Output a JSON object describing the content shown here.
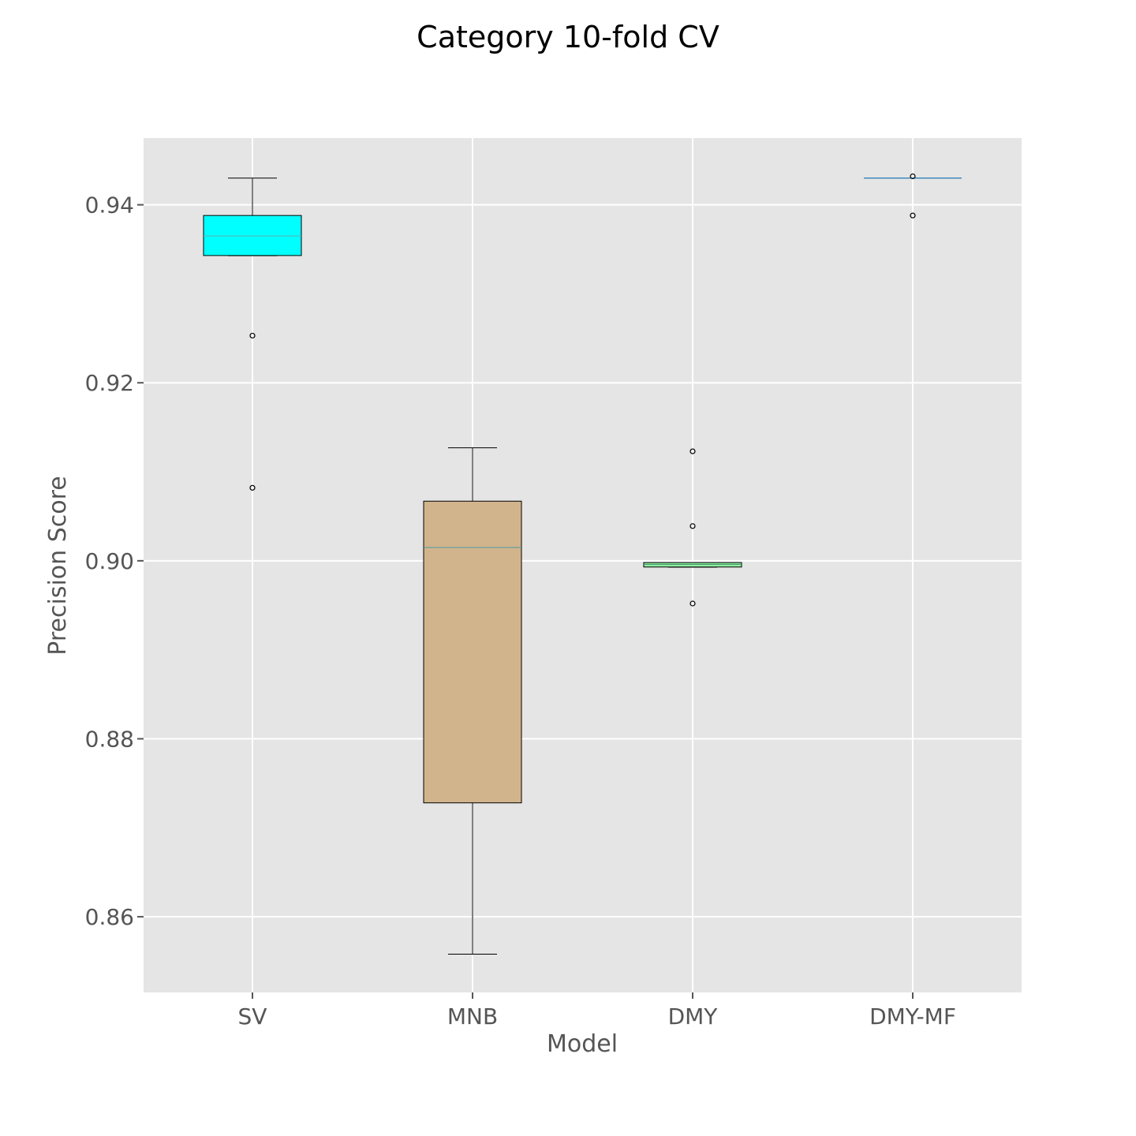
{
  "chart_data": {
    "type": "box",
    "title": "Category 10-fold CV",
    "xlabel": "Model",
    "ylabel": "Precision  Score",
    "ylim": [
      0.8515,
      0.9475
    ],
    "y_ticks": [
      0.86,
      0.88,
      0.9,
      0.92,
      0.94
    ],
    "y_tick_labels": [
      "0.86",
      "0.88",
      "0.90",
      "0.92",
      "0.94"
    ],
    "grid": true,
    "background_color": "#e5e5e5",
    "grid_color": "#ffffff",
    "categories": [
      "SV",
      "MNB",
      "DMY",
      "DMY-MF"
    ],
    "boxes": [
      {
        "category": "SV",
        "fill": "#00ffff",
        "median_color": "#5fb0b0",
        "whisker_low": 0.9343,
        "q1": 0.9343,
        "median": 0.9365,
        "q3": 0.9388,
        "whisker_high": 0.943,
        "outliers": [
          0.9253,
          0.9082
        ]
      },
      {
        "category": "MNB",
        "fill": "#d2b48c",
        "median_color": "#4a9aa6",
        "whisker_low": 0.8558,
        "q1": 0.8728,
        "median": 0.9015,
        "q3": 0.9067,
        "whisker_high": 0.9127,
        "outliers": []
      },
      {
        "category": "DMY",
        "fill": "#90eea0",
        "median_color": "#3f8f6a",
        "whisker_low": 0.8993,
        "q1": 0.8993,
        "median": 0.8996,
        "q3": 0.8998,
        "whisker_high": 0.8998,
        "outliers": [
          0.9123,
          0.9039,
          0.8952
        ]
      },
      {
        "category": "DMY-MF",
        "fill": "#1f77b4",
        "median_color": "#1f77b4",
        "whisker_low": 0.943,
        "q1": 0.943,
        "median": 0.943,
        "q3": 0.943,
        "whisker_high": 0.943,
        "outliers": [
          0.9432,
          0.9388
        ]
      }
    ]
  }
}
